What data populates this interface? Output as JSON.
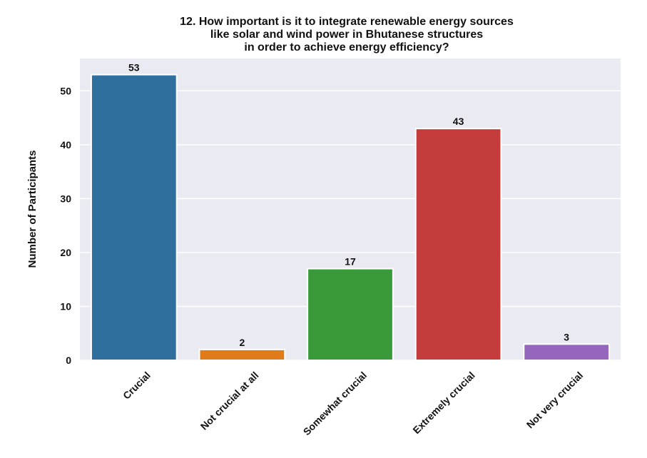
{
  "chart_data": {
    "type": "bar",
    "title_lines": [
      "12. How important is it to integrate renewable energy sources",
      "like solar and wind power in Bhutanese structures",
      "in order to achieve energy efficiency?"
    ],
    "xlabel": "",
    "ylabel": "Number of Participants",
    "categories": [
      "Crucial",
      "Not crucial at all",
      "Somewhat crucial",
      "Extremely crucial",
      "Not very crucial"
    ],
    "values": [
      53,
      2,
      17,
      43,
      3
    ],
    "data_labels": [
      "53",
      "2",
      "17",
      "43",
      "3"
    ],
    "colors": [
      "#2e6f9e",
      "#e07b1a",
      "#3a9a3a",
      "#c43b3b",
      "#9467bd"
    ],
    "ylim": [
      0,
      56
    ],
    "yticks": [
      0,
      10,
      20,
      30,
      40,
      50
    ],
    "grid": true,
    "background": "#eaeaf2"
  }
}
